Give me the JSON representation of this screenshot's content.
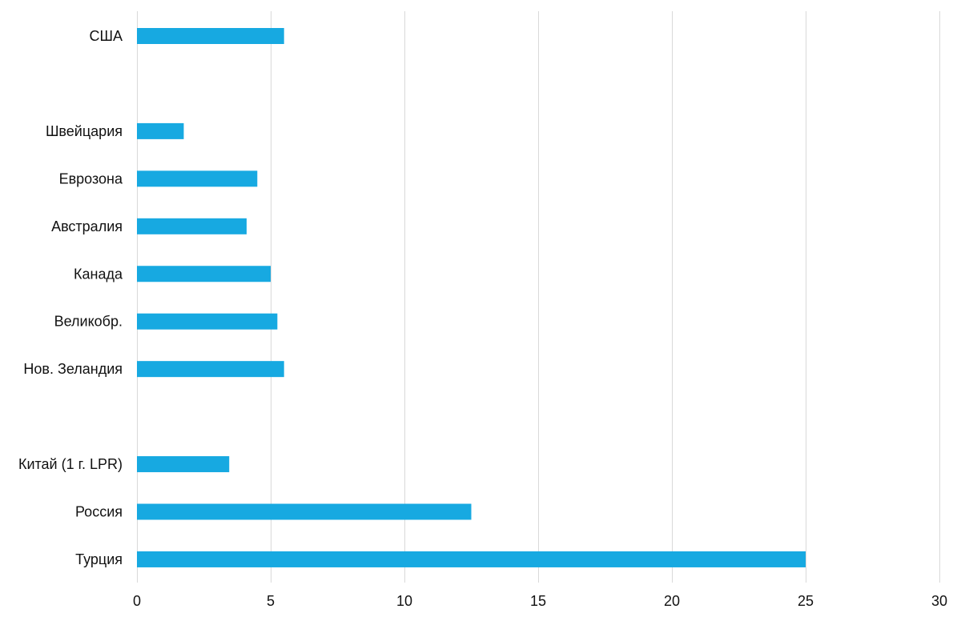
{
  "chart_data": {
    "type": "bar",
    "orientation": "horizontal",
    "title": "",
    "xlabel": "",
    "ylabel": "",
    "xlim": [
      0,
      30
    ],
    "x_ticks": [
      0,
      5,
      10,
      15,
      20,
      25,
      30
    ],
    "grid": "vertical",
    "legend": "none",
    "bar_color": "#17a9e1",
    "grid_color": "#d9d9d9",
    "categories": [
      "США",
      "",
      "Швейцария",
      "Еврозона",
      "Австралия",
      "Канада",
      "Великобр.",
      "Нов. Зеландия",
      "",
      "Китай (1 г. LPR)",
      "Россия",
      "Турция"
    ],
    "values": [
      5.5,
      null,
      1.75,
      4.5,
      4.1,
      5.0,
      5.25,
      5.5,
      null,
      3.45,
      12.5,
      25.0
    ]
  }
}
